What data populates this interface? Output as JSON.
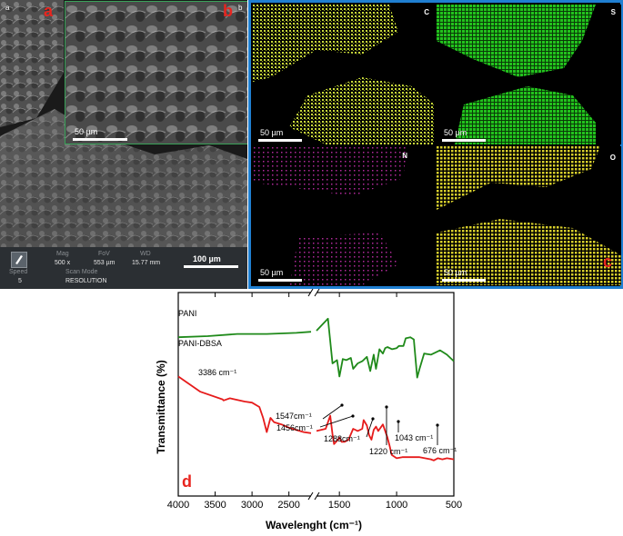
{
  "panels": {
    "a": "a",
    "b": "b",
    "c": "c",
    "d": "d"
  },
  "sem": {
    "small_label_a": "a",
    "small_label_b": "b",
    "inset_scale": "50 µm",
    "main_scale": "100 µm",
    "info_headers": {
      "mag": "Mag",
      "fov": "FoV",
      "wd": "WD",
      "speed": "Speed",
      "scan_mode": "Scan Mode"
    },
    "info_values": {
      "mag": "500 x",
      "fov": "553 µm",
      "wd": "15.77 mm",
      "speed": "5",
      "scan_mode": "RESOLUTION"
    }
  },
  "eds": {
    "maps": [
      {
        "element": "C",
        "scale": "50 µm",
        "color": "#c8d93a"
      },
      {
        "element": "S",
        "scale": "50 µm",
        "color": "#22c21d"
      },
      {
        "element": "N",
        "scale": "50 µm",
        "color": "#b02a9a"
      },
      {
        "element": "O",
        "scale": "50 µm",
        "color": "#d8cf2c"
      }
    ],
    "frame_color": "#1f7fd1"
  },
  "chart_data": {
    "type": "line",
    "xlabel": "Wavelenght  (cm⁻¹)",
    "ylabel": "Transmittance (%)",
    "x_ticks": [
      "4000",
      "3500",
      "3000",
      "2500",
      "1500",
      "1000",
      "500"
    ],
    "x_axis_reversed": true,
    "x_axis_break": [
      2200,
      1700
    ],
    "series": [
      {
        "name": "PANI",
        "color": "#1f8a1a",
        "points": [
          [
            4000,
            0.26
          ],
          [
            3600,
            0.25
          ],
          [
            3200,
            0.23
          ],
          [
            2800,
            0.23
          ],
          [
            2400,
            0.22
          ],
          [
            2200,
            0.21
          ],
          [
            1700,
            0.2
          ],
          [
            1600,
            0.09
          ],
          [
            1560,
            0.5
          ],
          [
            1520,
            0.47
          ],
          [
            1500,
            0.62
          ],
          [
            1470,
            0.46
          ],
          [
            1440,
            0.47
          ],
          [
            1400,
            0.45
          ],
          [
            1380,
            0.55
          ],
          [
            1340,
            0.5
          ],
          [
            1300,
            0.48
          ],
          [
            1260,
            0.44
          ],
          [
            1230,
            0.57
          ],
          [
            1200,
            0.42
          ],
          [
            1180,
            0.55
          ],
          [
            1150,
            0.37
          ],
          [
            1120,
            0.41
          ],
          [
            1100,
            0.36
          ],
          [
            1080,
            0.35
          ],
          [
            1040,
            0.37
          ],
          [
            1000,
            0.36
          ],
          [
            980,
            0.34
          ],
          [
            940,
            0.34
          ],
          [
            920,
            0.27
          ],
          [
            880,
            0.26
          ],
          [
            850,
            0.28
          ],
          [
            820,
            0.63
          ],
          [
            800,
            0.55
          ],
          [
            760,
            0.41
          ],
          [
            700,
            0.42
          ],
          [
            620,
            0.38
          ],
          [
            560,
            0.42
          ],
          [
            500,
            0.48
          ]
        ]
      },
      {
        "name": "PANI-DBSA",
        "color": "#e61b1b",
        "points": [
          [
            4000,
            0.62
          ],
          [
            3700,
            0.76
          ],
          [
            3400,
            0.83
          ],
          [
            3386,
            0.84
          ],
          [
            3300,
            0.82
          ],
          [
            3100,
            0.85
          ],
          [
            3000,
            0.86
          ],
          [
            2900,
            0.9
          ],
          [
            2850,
            1.0
          ],
          [
            2800,
            1.13
          ],
          [
            2750,
            1.0
          ],
          [
            2700,
            1.04
          ],
          [
            2600,
            1.06
          ],
          [
            2500,
            1.09
          ],
          [
            2400,
            1.11
          ],
          [
            2300,
            1.13
          ],
          [
            2200,
            1.14
          ],
          [
            1700,
            1.12
          ],
          [
            1620,
            1.1
          ],
          [
            1580,
            0.98
          ],
          [
            1560,
            1.15
          ],
          [
            1547,
            1.24
          ],
          [
            1520,
            1.21
          ],
          [
            1500,
            1.18
          ],
          [
            1480,
            1.22
          ],
          [
            1456,
            1.22
          ],
          [
            1420,
            1.2
          ],
          [
            1380,
            1.1
          ],
          [
            1340,
            1.12
          ],
          [
            1300,
            1.1
          ],
          [
            1288,
            1.02
          ],
          [
            1260,
            1.07
          ],
          [
            1240,
            1.16
          ],
          [
            1220,
            1.2
          ],
          [
            1200,
            1.11
          ],
          [
            1180,
            1.08
          ],
          [
            1160,
            1.12
          ],
          [
            1120,
            1.06
          ],
          [
            1080,
            1.18
          ],
          [
            1060,
            1.26
          ],
          [
            1043,
            1.34
          ],
          [
            1000,
            1.37
          ],
          [
            950,
            1.36
          ],
          [
            900,
            1.36
          ],
          [
            800,
            1.36
          ],
          [
            700,
            1.38
          ],
          [
            676,
            1.39
          ],
          [
            640,
            1.37
          ],
          [
            600,
            1.38
          ],
          [
            560,
            1.37
          ],
          [
            500,
            1.38
          ]
        ]
      }
    ],
    "annotations": [
      {
        "text": "3386 cm⁻¹"
      },
      {
        "text": "1547cm⁻¹"
      },
      {
        "text": "1456cm⁻¹"
      },
      {
        "text": "1288cm⁻¹"
      },
      {
        "text": "1220 cm⁻¹"
      },
      {
        "text": "1043 cm⁻¹"
      },
      {
        "text": "676 cm⁻¹"
      }
    ]
  }
}
